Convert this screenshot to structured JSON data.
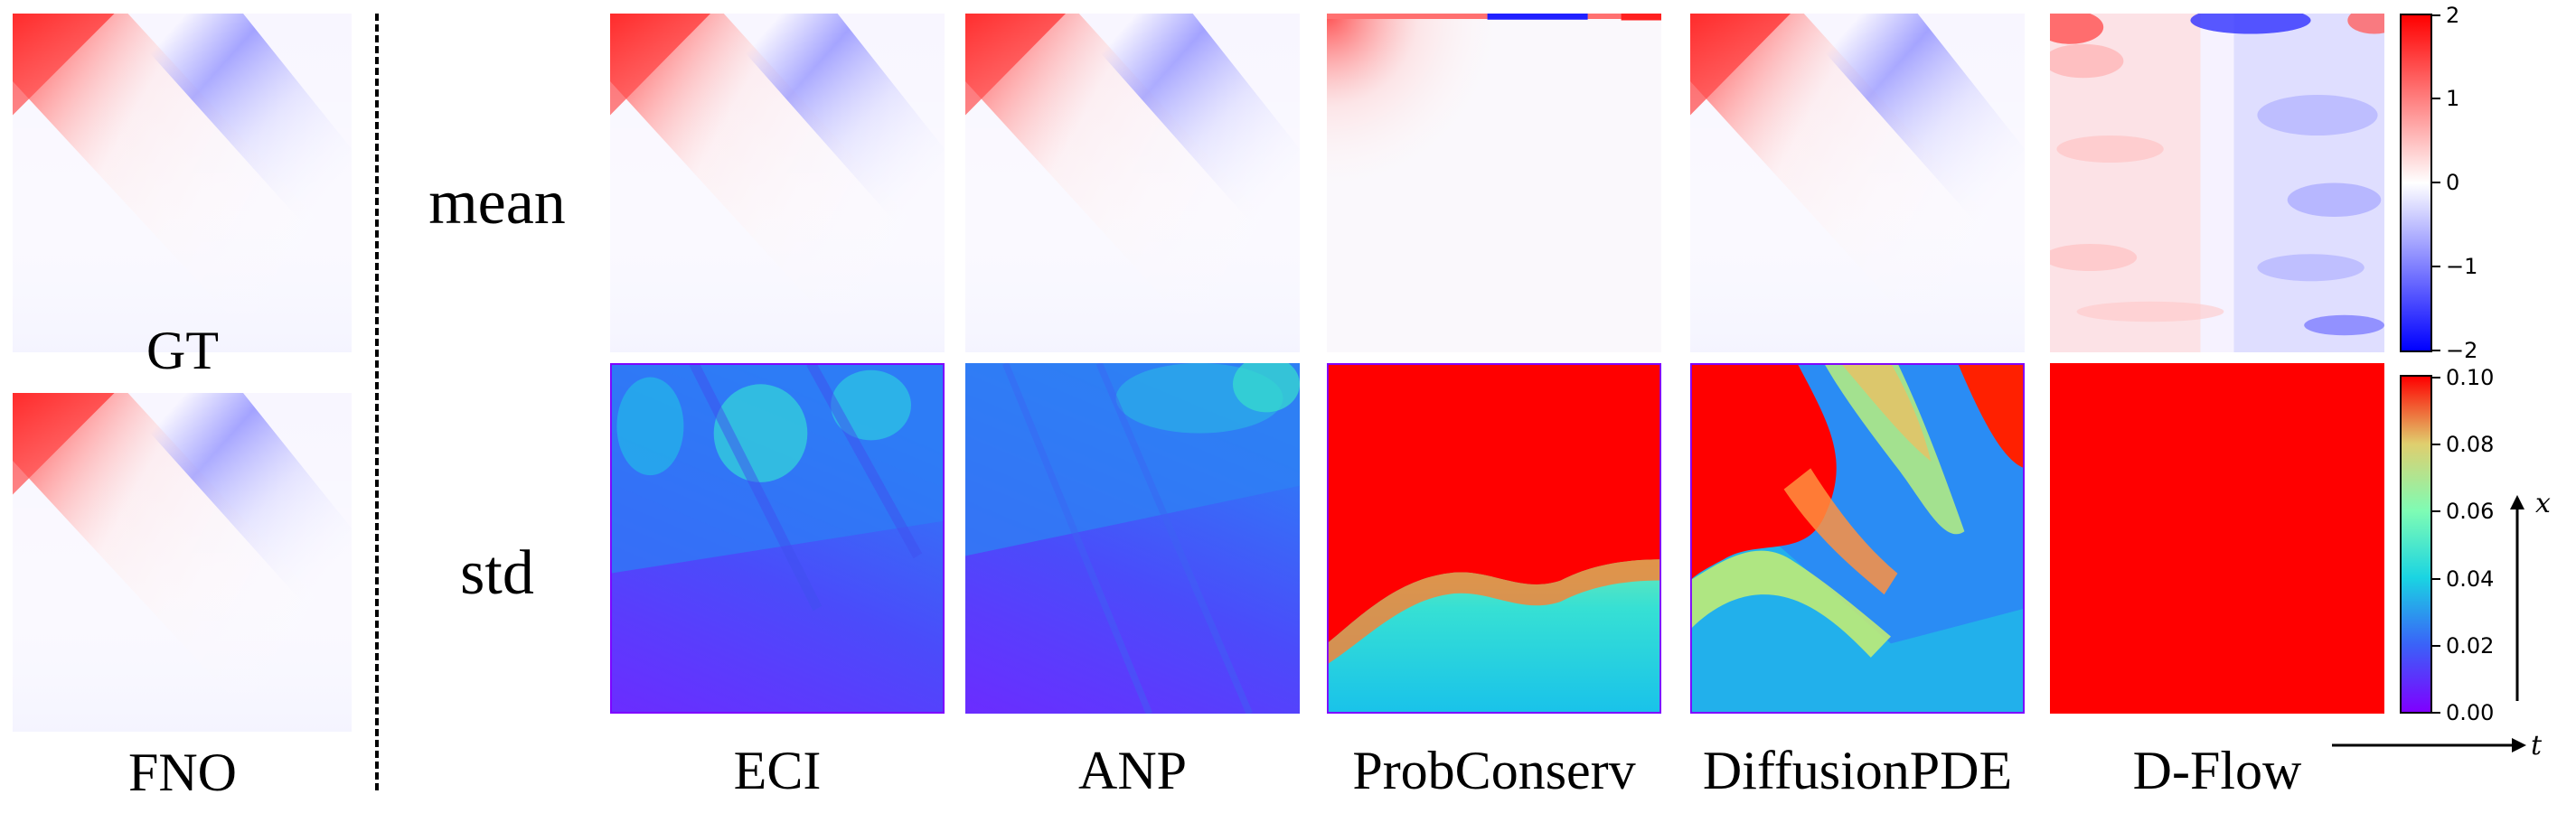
{
  "figure": {
    "left": {
      "top_label": "GT",
      "bottom_label": "FNO"
    },
    "row_labels": {
      "mean": "mean",
      "std": "std"
    },
    "methods": [
      "ECI",
      "ANP",
      "ProbConserv",
      "DiffusionPDE",
      "D-Flow"
    ],
    "mean_colorbar": {
      "colormap": "bwr",
      "range": [
        -2,
        2
      ],
      "ticks": [
        "2",
        "1",
        "0",
        "−1",
        "−2"
      ],
      "colors": {
        "max": "#ff0000",
        "mid": "#ffffff",
        "min": "#0000ff"
      }
    },
    "std_colorbar": {
      "colormap": "rainbow",
      "range": [
        0.0,
        0.1
      ],
      "ticks": [
        "0.10",
        "0.08",
        "0.06",
        "0.04",
        "0.02",
        "0.00"
      ],
      "colors": [
        "#7f00ff",
        "#3a62f8",
        "#1ad4e2",
        "#7ffcb4",
        "#e0ce6e",
        "#ff0000"
      ]
    },
    "axes": {
      "vertical": "x",
      "horizontal": "t"
    },
    "std_panels": {
      "ECI": "low-with-diagonal-streaks",
      "ANP": "low-with-faint-streaks",
      "ProbConserv": "saturated-top-cyan-bottom",
      "DiffusionPDE": "mixed-high",
      "D-Flow": "saturated"
    }
  }
}
